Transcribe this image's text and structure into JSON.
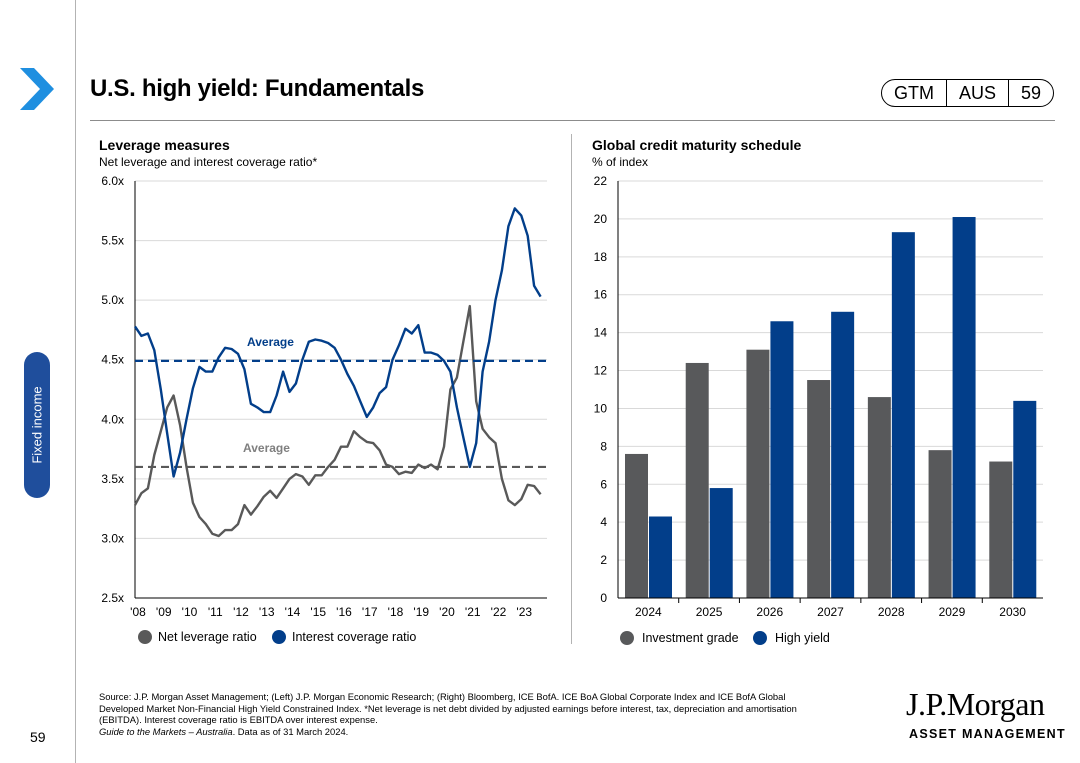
{
  "page": {
    "title": "U.S. high yield: Fundamentals",
    "badge": [
      "GTM",
      "AUS",
      "59"
    ],
    "side_tab": "Fixed income",
    "page_number": "59",
    "source_lines": [
      "Source: J.P. Morgan Asset Management; (Left) J.P. Morgan Economic Research; (Right) Bloomberg, ICE BofA. ICE BoA Global Corporate Index and ICE BofA Global",
      "Developed Market Non-Financial High Yield Constrained Index. *Net leverage is net debt divided by adjusted earnings before interest, tax, depreciation and amortisation",
      "(EBITDA). Interest coverage ratio is EBITDA over interest expense."
    ],
    "source_italic": "Guide to the Markets – Australia",
    "source_tail": ". Data as of 31 March 2024.",
    "logo_name": "J.P.Morgan",
    "logo_sub": "ASSET MANAGEMENT",
    "colors": {
      "accent": "#1f4e9c",
      "navy": "#023e8a",
      "gray": "#595959"
    }
  },
  "chart_data": [
    {
      "type": "line",
      "title": "Leverage measures",
      "subtitle": "Net leverage and interest coverage ratio*",
      "ylim": [
        2.5,
        6.0
      ],
      "yticks": [
        "2.5x",
        "3.0x",
        "3.5x",
        "4.0x",
        "4.5x",
        "5.0x",
        "5.5x",
        "6.0x"
      ],
      "ytick_values": [
        2.5,
        3.0,
        3.5,
        4.0,
        4.5,
        5.0,
        5.5,
        6.0
      ],
      "xlim": [
        2008,
        2024
      ],
      "xticks": [
        "'08",
        "'09",
        "'10",
        "'11",
        "'12",
        "'13",
        "'14",
        "'15",
        "'16",
        "'17",
        "'18",
        "'19",
        "'20",
        "'21",
        "'22",
        "'23"
      ],
      "xtick_values": [
        2008,
        2009,
        2010,
        2011,
        2012,
        2013,
        2014,
        2015,
        2016,
        2017,
        2018,
        2019,
        2020,
        2021,
        2022,
        2023
      ],
      "series": [
        {
          "name": "Net leverage ratio",
          "color": "#595959",
          "average": 3.6,
          "average_label": "Average",
          "x": [
            2008.0,
            2008.25,
            2008.5,
            2008.75,
            2009.0,
            2009.25,
            2009.5,
            2009.75,
            2010.0,
            2010.25,
            2010.5,
            2010.75,
            2011.0,
            2011.25,
            2011.5,
            2011.75,
            2012.0,
            2012.25,
            2012.5,
            2012.75,
            2013.0,
            2013.25,
            2013.5,
            2013.75,
            2014.0,
            2014.25,
            2014.5,
            2014.75,
            2015.0,
            2015.25,
            2015.5,
            2015.75,
            2016.0,
            2016.25,
            2016.5,
            2016.75,
            2017.0,
            2017.25,
            2017.5,
            2017.75,
            2018.0,
            2018.25,
            2018.5,
            2018.75,
            2019.0,
            2019.25,
            2019.5,
            2019.75,
            2020.0,
            2020.25,
            2020.5,
            2020.75,
            2021.0,
            2021.25,
            2021.5,
            2021.75,
            2022.0,
            2022.25,
            2022.5,
            2022.75,
            2023.0,
            2023.25,
            2023.5,
            2023.75
          ],
          "y": [
            3.28,
            3.38,
            3.42,
            3.7,
            3.9,
            4.1,
            4.2,
            3.95,
            3.6,
            3.3,
            3.18,
            3.12,
            3.04,
            3.02,
            3.07,
            3.07,
            3.12,
            3.28,
            3.2,
            3.27,
            3.35,
            3.4,
            3.34,
            3.42,
            3.5,
            3.54,
            3.52,
            3.45,
            3.53,
            3.53,
            3.6,
            3.66,
            3.77,
            3.77,
            3.9,
            3.85,
            3.81,
            3.8,
            3.74,
            3.62,
            3.6,
            3.54,
            3.56,
            3.55,
            3.62,
            3.59,
            3.62,
            3.58,
            3.77,
            4.25,
            4.35,
            4.65,
            4.95,
            4.15,
            3.92,
            3.85,
            3.8,
            3.5,
            3.32,
            3.28,
            3.33,
            3.45,
            3.44,
            3.37
          ]
        },
        {
          "name": "Interest coverage ratio",
          "color": "#023e8a",
          "average": 4.49,
          "average_label": "Average",
          "x": [
            2008.0,
            2008.25,
            2008.5,
            2008.75,
            2009.0,
            2009.25,
            2009.5,
            2009.75,
            2010.0,
            2010.25,
            2010.5,
            2010.75,
            2011.0,
            2011.25,
            2011.5,
            2011.75,
            2012.0,
            2012.25,
            2012.5,
            2012.75,
            2013.0,
            2013.25,
            2013.5,
            2013.75,
            2014.0,
            2014.25,
            2014.5,
            2014.75,
            2015.0,
            2015.25,
            2015.5,
            2015.75,
            2016.0,
            2016.25,
            2016.5,
            2016.75,
            2017.0,
            2017.25,
            2017.5,
            2017.75,
            2018.0,
            2018.25,
            2018.5,
            2018.75,
            2019.0,
            2019.25,
            2019.5,
            2019.75,
            2020.0,
            2020.25,
            2020.5,
            2020.75,
            2021.0,
            2021.25,
            2021.5,
            2021.75,
            2022.0,
            2022.25,
            2022.5,
            2022.75,
            2023.0,
            2023.25,
            2023.5,
            2023.75
          ],
          "y": [
            4.78,
            4.7,
            4.72,
            4.58,
            4.25,
            3.88,
            3.52,
            3.72,
            4.0,
            4.26,
            4.44,
            4.4,
            4.4,
            4.52,
            4.6,
            4.59,
            4.55,
            4.42,
            4.13,
            4.1,
            4.06,
            4.06,
            4.2,
            4.4,
            4.23,
            4.3,
            4.5,
            4.65,
            4.67,
            4.66,
            4.64,
            4.6,
            4.5,
            4.38,
            4.28,
            4.15,
            4.02,
            4.1,
            4.22,
            4.27,
            4.5,
            4.62,
            4.76,
            4.72,
            4.79,
            4.56,
            4.56,
            4.54,
            4.49,
            4.4,
            4.1,
            3.85,
            3.6,
            3.8,
            4.4,
            4.65,
            5.0,
            5.25,
            5.62,
            5.77,
            5.71,
            5.54,
            5.12,
            5.03
          ]
        }
      ]
    },
    {
      "type": "bar",
      "title": "Global credit maturity schedule",
      "subtitle": "% of index",
      "ylim": [
        0,
        22
      ],
      "yticks": [
        "0",
        "2",
        "4",
        "6",
        "8",
        "10",
        "12",
        "14",
        "16",
        "18",
        "20",
        "22"
      ],
      "ytick_values": [
        0,
        2,
        4,
        6,
        8,
        10,
        12,
        14,
        16,
        18,
        20,
        22
      ],
      "categories": [
        "2024",
        "2025",
        "2026",
        "2027",
        "2028",
        "2029",
        "2030"
      ],
      "series": [
        {
          "name": "Investment grade",
          "color": "#58595b",
          "values": [
            7.6,
            12.4,
            13.1,
            11.5,
            10.6,
            7.8,
            7.2
          ]
        },
        {
          "name": "High yield",
          "color": "#023e8a",
          "values": [
            4.3,
            5.8,
            14.6,
            15.1,
            19.3,
            20.1,
            10.4
          ]
        }
      ]
    }
  ]
}
